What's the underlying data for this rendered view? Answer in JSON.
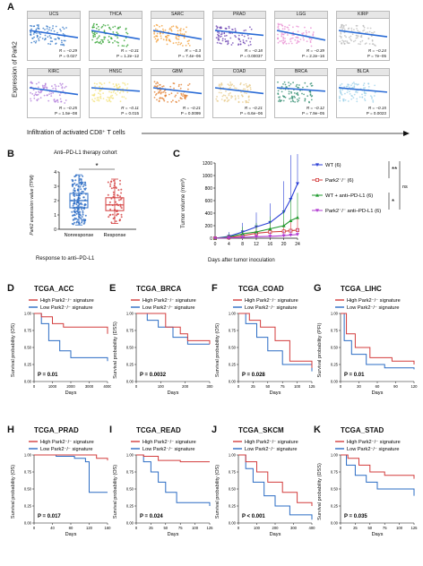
{
  "panelA": {
    "letter": "A",
    "ylabel": "Expression of Park2",
    "xlabel": "Infiltration of activated CD8⁺ T cells",
    "tiles": [
      {
        "name": "UCS",
        "r": "R = −0.29",
        "p": "P = 0.027",
        "color": "#2a72c6",
        "slope": 0.15
      },
      {
        "name": "THCA",
        "r": "R = −0.31",
        "p": "P = 1.2e−12",
        "color": "#2aa02a",
        "slope": 0.18
      },
      {
        "name": "SARC",
        "r": "R = −0.3",
        "p": "P = 7.4e−06",
        "color": "#f39c33",
        "slope": 0.18
      },
      {
        "name": "PRAD",
        "r": "R = −0.18",
        "p": "P = 0.00037",
        "color": "#6a3fb0",
        "slope": 0.1
      },
      {
        "name": "LGG",
        "r": "R = −0.39",
        "p": "P = 2.2e−16",
        "color": "#e88ad0",
        "slope": 0.2
      },
      {
        "name": "KIRP",
        "r": "R = −0.24",
        "p": "P = 7e−05",
        "color": "#bbbbbb",
        "slope": 0.13
      },
      {
        "name": "KIRC",
        "r": "R = −0.25",
        "p": "P = 1.5e−08",
        "color": "#b07ad9",
        "slope": 0.14
      },
      {
        "name": "HNSC",
        "r": "R = −0.11",
        "p": "P = 0.015",
        "color": "#f3e27a",
        "slope": 0.07
      },
      {
        "name": "GBM",
        "r": "R = −0.21",
        "p": "P = 0.0099",
        "color": "#e27b2a",
        "slope": 0.12
      },
      {
        "name": "COAD",
        "r": "R = −0.21",
        "p": "P = 6.6e−06",
        "color": "#e7c98a",
        "slope": 0.12
      },
      {
        "name": "BRCA",
        "r": "R = −0.12",
        "p": "P = 7.9e−05",
        "color": "#2e8b6e",
        "slope": 0.07
      },
      {
        "name": "BLCA",
        "r": "R = −0.15",
        "p": "P = 0.0023",
        "color": "#9bd0e8",
        "slope": 0.09
      }
    ]
  },
  "panelB": {
    "letter": "B",
    "title": "Anti–PD-L1 therapy cohort",
    "ylabel": "Park2 expression value (TPM)",
    "xlabel": "Response to anti–PD-L1",
    "sig": "*",
    "yticks": [
      "0",
      "1",
      "2",
      "3",
      "4"
    ],
    "categories": [
      "Nonresponse",
      "Response"
    ],
    "colors": [
      "#2b6cc4",
      "#d33d3d"
    ]
  },
  "panelC": {
    "letter": "C",
    "ylabel": "Tumor volume (mm³)",
    "xlabel": "Days after tumor inoculation",
    "yticks": [
      "0",
      "200",
      "400",
      "600",
      "800",
      "1000",
      "1200"
    ],
    "xticks": [
      "0",
      "4",
      "8",
      "12",
      "16",
      "20",
      "24"
    ],
    "legend": [
      "WT (6)",
      "Park2⁻/⁻ (6)",
      "WT + anti–PD-L1 (6)",
      "Park2⁻/⁻ anti–PD-L1 (6)"
    ],
    "sig1": "**",
    "sig2": "*",
    "sig3": "ns"
  },
  "chart_data": [
    {
      "type": "line",
      "title": "",
      "xlabel": "Days after tumor inoculation",
      "ylabel": "Tumor volume (mm³)",
      "ylim": [
        0,
        1200
      ],
      "xlim": [
        0,
        24
      ],
      "x": [
        0,
        4,
        8,
        12,
        16,
        20,
        22,
        24
      ],
      "series": [
        {
          "name": "WT (6)",
          "color": "#2b3fd6",
          "values": [
            0,
            30,
            100,
            180,
            250,
            420,
            620,
            870
          ]
        },
        {
          "name": "Park2⁻/⁻ (6)",
          "color": "#d33d3d",
          "values": [
            0,
            10,
            40,
            80,
            100,
            110,
            120,
            130
          ]
        },
        {
          "name": "WT + anti–PD-L1 (6)",
          "color": "#1f9a2e",
          "values": [
            0,
            20,
            70,
            100,
            150,
            200,
            280,
            330
          ]
        },
        {
          "name": "Park2⁻/⁻ anti–PD-L1 (6)",
          "color": "#b03ad0",
          "values": [
            0,
            5,
            15,
            25,
            30,
            40,
            50,
            60
          ]
        }
      ]
    }
  ],
  "survival": {
    "legend_high": "High Park2⁻/⁻ signature",
    "legend_low": "Low Park2⁻/⁻ signature",
    "xlabel": "Days",
    "panels": [
      {
        "letter": "D",
        "title": "TCGA_ACC",
        "ylabel": "Survival probability (OS)",
        "p": "P = 0.01",
        "xticks": [
          "0",
          "1000",
          "2000",
          "3000",
          "4000"
        ]
      },
      {
        "letter": "E",
        "title": "TCGA_BRCA",
        "ylabel": "Survival probability (DSS)",
        "p": "P = 0.0032",
        "xticks": [
          "0",
          "100",
          "200",
          "300"
        ]
      },
      {
        "letter": "F",
        "title": "TCGA_COAD",
        "ylabel": "Survival probability (OS)",
        "p": "P = 0.028",
        "xticks": [
          "0",
          "25",
          "50",
          "75",
          "100",
          "125"
        ]
      },
      {
        "letter": "G",
        "title": "TCGA_LIHC",
        "ylabel": "Survival probability (PFI)",
        "p": "P = 0.01",
        "xticks": [
          "0",
          "30",
          "60",
          "90",
          "120"
        ]
      },
      {
        "letter": "H",
        "title": "TCGA_PRAD",
        "ylabel": "Survival probability (OS)",
        "p": "P = 0.017",
        "xticks": [
          "0",
          "40",
          "80",
          "120",
          "160"
        ]
      },
      {
        "letter": "I",
        "title": "TCGA_READ",
        "ylabel": "Survival probability (OS)",
        "p": "P = 0.024",
        "xticks": [
          "0",
          "25",
          "50",
          "75",
          "100",
          "125"
        ]
      },
      {
        "letter": "J",
        "title": "TCGA_SKCM",
        "ylabel": "Survival probability (OS)",
        "p": "P < 0.001",
        "xticks": [
          "0",
          "100",
          "200",
          "300",
          "400"
        ]
      },
      {
        "letter": "K",
        "title": "TCGA_STAD",
        "ylabel": "Survival probability (DSS)",
        "p": "P = 0.035",
        "xticks": [
          "0",
          "25",
          "50",
          "75",
          "100",
          "125"
        ]
      }
    ],
    "yticks": [
      "0.00",
      "0.25",
      "0.50",
      "0.75",
      "1.00"
    ]
  }
}
